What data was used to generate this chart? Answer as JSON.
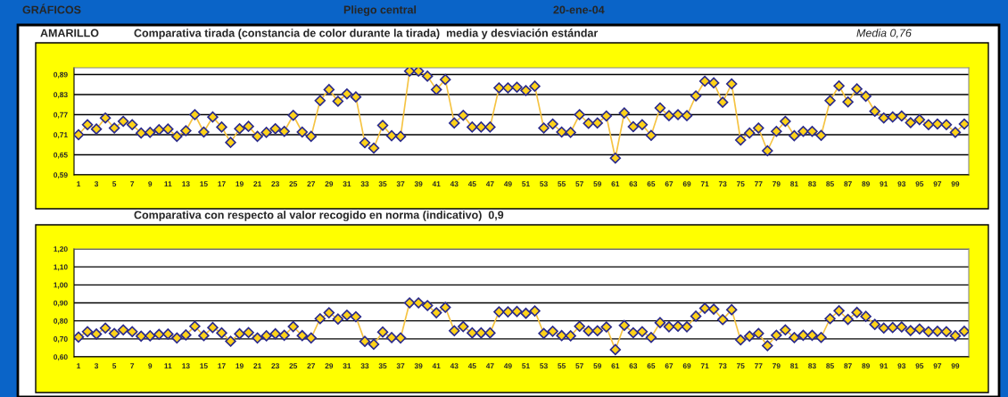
{
  "chart_data": [
    {
      "type": "line",
      "title": "Comparativa tirada (constancia de color durante la tirada)  media y desviación estándar",
      "annotations": [
        "GRÁFICOS",
        "Pliego central",
        "20-ene-04",
        "AMARILLO",
        "Media 0,76"
      ],
      "categories": [
        "1",
        null,
        "3",
        null,
        "5",
        null,
        "7",
        null,
        "9",
        null,
        "11",
        null,
        "13",
        null,
        "15",
        null,
        "17",
        null,
        "19",
        null,
        "21",
        null,
        "23",
        null,
        "25",
        null,
        "27",
        null,
        "29",
        null,
        "31",
        null,
        "33",
        null,
        "35",
        null,
        "37",
        null,
        "39",
        null,
        "41",
        null,
        "43",
        null,
        "45",
        null,
        "47",
        null,
        "49",
        null,
        "51",
        null,
        "53",
        null,
        "55",
        null,
        "57",
        null,
        "59",
        null,
        "61",
        null,
        "63",
        null,
        "65",
        null,
        "67",
        null,
        "69",
        null,
        "71",
        null,
        "73",
        null,
        "75",
        null,
        "77",
        null,
        "79",
        null,
        "81",
        null,
        "83",
        null,
        "85",
        null,
        "87",
        null,
        "89",
        null,
        "91",
        null,
        "93",
        null,
        "95",
        null,
        "97",
        null,
        "99",
        null
      ],
      "series": [
        {
          "color": "#f5c342",
          "values": [
            0.71,
            0.74,
            0.727,
            0.76,
            0.73,
            0.75,
            0.74,
            0.715,
            0.717,
            0.725,
            0.727,
            0.705,
            0.722,
            0.77,
            0.718,
            0.763,
            0.733,
            0.687,
            0.728,
            0.735,
            0.705,
            0.717,
            0.728,
            0.72,
            0.768,
            0.718,
            0.705,
            0.812,
            0.845,
            0.81,
            0.832,
            0.823,
            0.686,
            0.67,
            0.738,
            0.707,
            0.705,
            0.9,
            0.9,
            0.885,
            0.845,
            0.875,
            0.745,
            0.768,
            0.733,
            0.733,
            0.733,
            0.85,
            0.85,
            0.852,
            0.842,
            0.855,
            0.73,
            0.742,
            0.718,
            0.717,
            0.77,
            0.744,
            0.745,
            0.766,
            0.64,
            0.775,
            0.734,
            0.74,
            0.708,
            0.79,
            0.767,
            0.77,
            0.767,
            0.826,
            0.87,
            0.865,
            0.807,
            0.862,
            0.694,
            0.715,
            0.73,
            0.662,
            0.72,
            0.75,
            0.707,
            0.72,
            0.72,
            0.708,
            0.812,
            0.856,
            0.808,
            0.847,
            0.825,
            0.78,
            0.76,
            0.763,
            0.766,
            0.746,
            0.755,
            0.74,
            0.742,
            0.74,
            0.717,
            0.742
          ]
        }
      ],
      "ylim": [
        0.59,
        0.91
      ],
      "yticks": [
        {
          "value": 0.59,
          "label": "0,59"
        },
        {
          "value": 0.65,
          "label": "0,65"
        },
        {
          "value": 0.71,
          "label": "0,71"
        },
        {
          "value": 0.77,
          "label": "0,77"
        },
        {
          "value": 0.83,
          "label": "0,83"
        },
        {
          "value": 0.89,
          "label": "0,89"
        }
      ],
      "grid": "y",
      "marker": "diamond",
      "line_style": "solid",
      "legend": false
    },
    {
      "type": "line",
      "title": "Comparativa con respecto al valor recogido en norma (indicativo)  0,9",
      "categories": [
        "1",
        null,
        "3",
        null,
        "5",
        null,
        "7",
        null,
        "9",
        null,
        "11",
        null,
        "13",
        null,
        "15",
        null,
        "17",
        null,
        "19",
        null,
        "21",
        null,
        "23",
        null,
        "25",
        null,
        "27",
        null,
        "29",
        null,
        "31",
        null,
        "33",
        null,
        "35",
        null,
        "37",
        null,
        "39",
        null,
        "41",
        null,
        "43",
        null,
        "45",
        null,
        "47",
        null,
        "49",
        null,
        "51",
        null,
        "53",
        null,
        "55",
        null,
        "57",
        null,
        "59",
        null,
        "61",
        null,
        "63",
        null,
        "65",
        null,
        "67",
        null,
        "69",
        null,
        "71",
        null,
        "73",
        null,
        "75",
        null,
        "77",
        null,
        "79",
        null,
        "81",
        null,
        "83",
        null,
        "85",
        null,
        "87",
        null,
        "89",
        null,
        "91",
        null,
        "93",
        null,
        "95",
        null,
        "97",
        null,
        "99",
        null
      ],
      "series": [
        {
          "color": "#f5c342",
          "values": [
            0.71,
            0.74,
            0.727,
            0.76,
            0.73,
            0.75,
            0.74,
            0.715,
            0.717,
            0.725,
            0.727,
            0.705,
            0.722,
            0.77,
            0.718,
            0.763,
            0.733,
            0.687,
            0.728,
            0.735,
            0.705,
            0.717,
            0.728,
            0.72,
            0.768,
            0.718,
            0.705,
            0.812,
            0.845,
            0.81,
            0.832,
            0.823,
            0.686,
            0.67,
            0.738,
            0.707,
            0.705,
            0.9,
            0.9,
            0.885,
            0.845,
            0.875,
            0.745,
            0.768,
            0.733,
            0.733,
            0.733,
            0.85,
            0.85,
            0.852,
            0.842,
            0.855,
            0.73,
            0.742,
            0.718,
            0.717,
            0.77,
            0.744,
            0.745,
            0.766,
            0.64,
            0.775,
            0.734,
            0.74,
            0.708,
            0.79,
            0.767,
            0.77,
            0.767,
            0.826,
            0.87,
            0.865,
            0.807,
            0.862,
            0.694,
            0.715,
            0.73,
            0.662,
            0.72,
            0.75,
            0.707,
            0.72,
            0.72,
            0.708,
            0.812,
            0.856,
            0.808,
            0.847,
            0.825,
            0.78,
            0.76,
            0.763,
            0.766,
            0.746,
            0.755,
            0.74,
            0.742,
            0.74,
            0.717,
            0.742
          ]
        }
      ],
      "ylim": [
        0.6,
        1.2
      ],
      "yticks": [
        {
          "value": 0.6,
          "label": "0,60"
        },
        {
          "value": 0.7,
          "label": "0,70"
        },
        {
          "value": 0.8,
          "label": "0,80"
        },
        {
          "value": 0.9,
          "label": "0,90"
        },
        {
          "value": 1.0,
          "label": "1,00"
        },
        {
          "value": 1.1,
          "label": "1,10"
        },
        {
          "value": 1.2,
          "label": "1,20"
        }
      ],
      "grid": "y",
      "marker": "diamond",
      "line_style": "solid",
      "legend": false
    }
  ]
}
